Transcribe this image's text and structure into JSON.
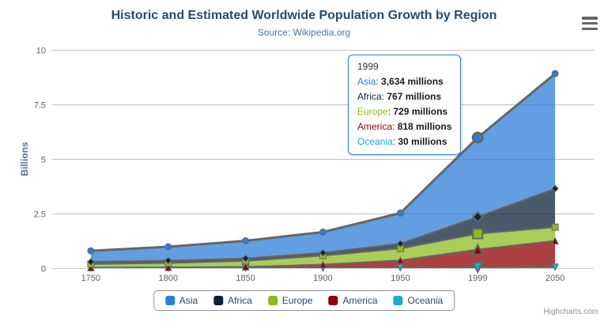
{
  "chart": {
    "title": "Historic and Estimated Worldwide Population Growth by Region",
    "subtitle": "Source: Wikipedia.org",
    "credits": "Highcharts.com"
  },
  "y_axis": {
    "title": "Billions",
    "tick_labels": [
      "0",
      "2.5",
      "5",
      "7.5",
      "10"
    ],
    "min": 0,
    "max": 10
  },
  "x_axis": {
    "categories": [
      "1750",
      "1800",
      "1850",
      "1900",
      "1950",
      "1999",
      "2050"
    ]
  },
  "chart_data": {
    "type": "area",
    "stacking": "normal",
    "unit": "millions",
    "title": "Historic and Estimated Worldwide Population Growth by Region",
    "subtitle": "Source: Wikipedia.org",
    "xlabel": "",
    "ylabel": "Billions",
    "ylim": [
      0,
      10
    ],
    "grid": true,
    "legend_position": "bottom",
    "hover_category_index": 5,
    "categories": [
      "1750",
      "1800",
      "1850",
      "1900",
      "1950",
      "1999",
      "2050"
    ],
    "series": [
      {
        "name": "Asia",
        "color": "#2f7ed8",
        "marker": "circle",
        "values": [
          502,
          635,
          809,
          947,
          1402,
          3634,
          5268
        ]
      },
      {
        "name": "Africa",
        "color": "#0d233a",
        "marker": "diamond",
        "values": [
          106,
          107,
          111,
          133,
          221,
          767,
          1766
        ]
      },
      {
        "name": "Europe",
        "color": "#8bbc21",
        "marker": "square",
        "values": [
          163,
          203,
          276,
          408,
          547,
          729,
          628
        ]
      },
      {
        "name": "America",
        "color": "#910000",
        "marker": "triangle",
        "values": [
          18,
          31,
          54,
          156,
          339,
          818,
          1201
        ]
      },
      {
        "name": "Oceania",
        "color": "#1aadce",
        "marker": "triangle-down",
        "values": [
          2,
          2,
          2,
          6,
          13,
          30,
          46
        ]
      }
    ]
  },
  "tooltip": {
    "header": "1999",
    "rows": [
      {
        "name": "Asia",
        "value": "3,634 millions",
        "color": "#2f7ed8"
      },
      {
        "name": "Africa",
        "value": "767 millions",
        "color": "#0d233a"
      },
      {
        "name": "Europe",
        "value": "729 millions",
        "color": "#8bbc21"
      },
      {
        "name": "America",
        "value": "818 millions",
        "color": "#910000"
      },
      {
        "name": "Oceania",
        "value": "30 millions",
        "color": "#1aadce"
      }
    ]
  },
  "legend": {
    "items": [
      "Asia",
      "Africa",
      "Europe",
      "America",
      "Oceania"
    ]
  },
  "colors": {
    "title": "#274b6d",
    "subtitle": "#4d759e",
    "axis_title": "#4d759e",
    "axis_labels": "#606060",
    "gridline": "#C0C0C0",
    "axis_line": "#C0D0E0",
    "series_line": "#666666",
    "legend_border": "#909090",
    "legend_label": "#274b6d",
    "tooltip_border": "#2f7ed8",
    "credits": "#909090"
  },
  "icons": {
    "export_menu": "hamburger-menu-icon"
  }
}
